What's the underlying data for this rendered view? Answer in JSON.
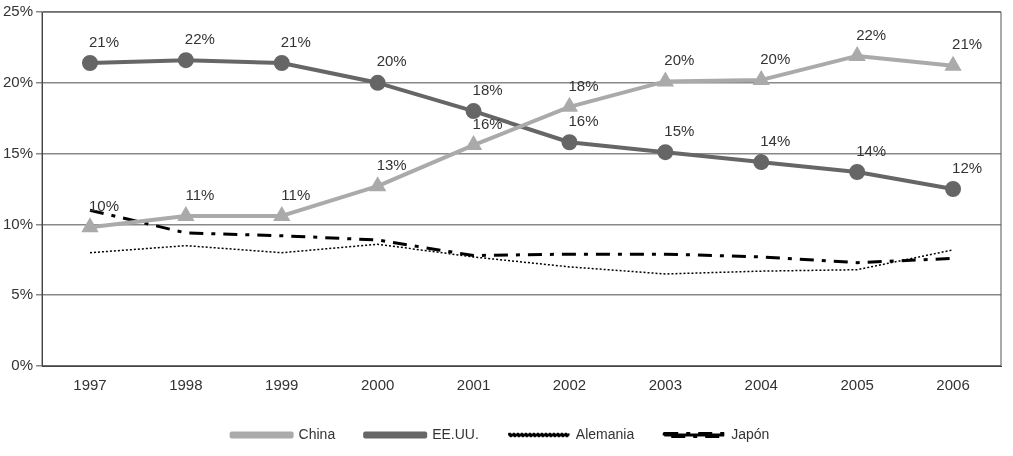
{
  "chart_data": {
    "type": "line",
    "categories": [
      "1997",
      "1998",
      "1999",
      "2000",
      "2001",
      "2002",
      "2003",
      "2004",
      "2005",
      "2006"
    ],
    "ylim": [
      0,
      25
    ],
    "yticks": [
      {
        "value": 0,
        "label": "0%"
      },
      {
        "value": 5,
        "label": "5%"
      },
      {
        "value": 10,
        "label": "10%"
      },
      {
        "value": 15,
        "label": "15%"
      },
      {
        "value": 20,
        "label": "20%"
      },
      {
        "value": 25,
        "label": "25%"
      }
    ],
    "grid": "y",
    "legend": "bottom",
    "series": [
      {
        "name": "China",
        "color": "#aaaaaa",
        "marker": "triangle",
        "line_style": "solid",
        "values": [
          9.8,
          10.6,
          10.6,
          12.7,
          15.6,
          18.3,
          20.1,
          20.2,
          21.9,
          21.2
        ],
        "value_labels": [
          "10%",
          "11%",
          "11%",
          "13%",
          "16%",
          "18%",
          "20%",
          "20%",
          "22%",
          "21%"
        ]
      },
      {
        "name": "EE.UU.",
        "color": "#666666",
        "marker": "circle",
        "line_style": "solid",
        "values": [
          21.4,
          21.6,
          21.4,
          20.0,
          18.0,
          15.8,
          15.1,
          14.4,
          13.7,
          12.5
        ],
        "value_labels": [
          "21%",
          "22%",
          "21%",
          "20%",
          "18%",
          "16%",
          "15%",
          "14%",
          "14%",
          "12%"
        ]
      },
      {
        "name": "Alemania",
        "color": "#000000",
        "marker": "none",
        "line_style": "dotted",
        "values": [
          8.0,
          8.5,
          8.0,
          8.6,
          7.7,
          7.0,
          6.5,
          6.7,
          6.8,
          8.2
        ]
      },
      {
        "name": "Japón",
        "color": "#000000",
        "marker": "none",
        "line_style": "dashed",
        "values": [
          11.0,
          9.4,
          9.2,
          8.9,
          7.8,
          7.9,
          7.9,
          7.7,
          7.3,
          7.6
        ]
      }
    ]
  }
}
